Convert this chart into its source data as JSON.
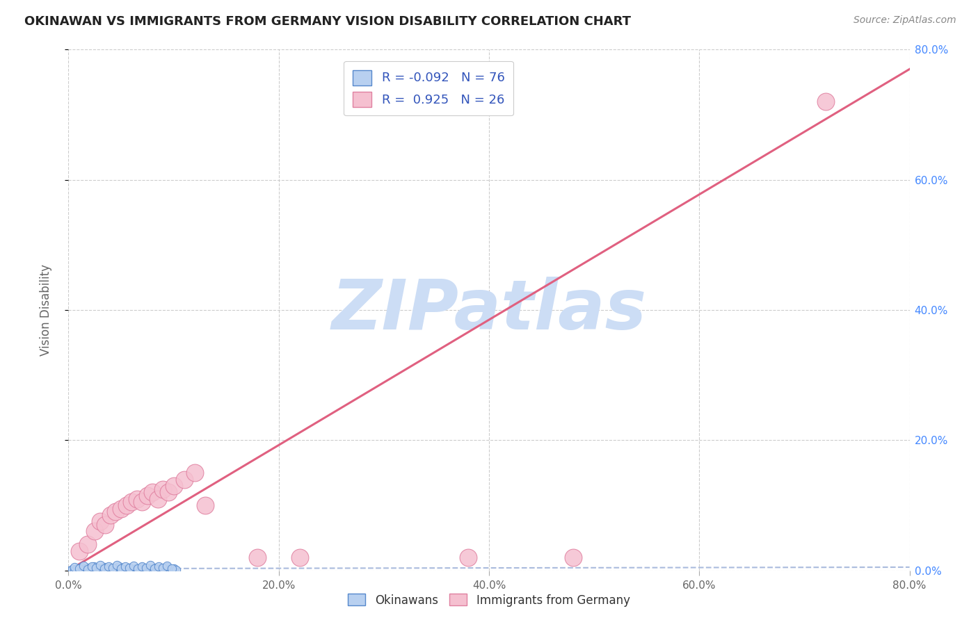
{
  "title": "OKINAWAN VS IMMIGRANTS FROM GERMANY VISION DISABILITY CORRELATION CHART",
  "source": "Source: ZipAtlas.com",
  "ylabel": "Vision Disability",
  "xlim": [
    0.0,
    0.8
  ],
  "ylim": [
    0.0,
    0.8
  ],
  "xtick_vals": [
    0.0,
    0.2,
    0.4,
    0.6,
    0.8
  ],
  "xtick_labels": [
    "0.0%",
    "20.0%",
    "40.0%",
    "60.0%",
    "80.0%"
  ],
  "ytick_vals": [
    0.0,
    0.2,
    0.4,
    0.6,
    0.8
  ],
  "ytick_labels_right": [
    "0.0%",
    "20.0%",
    "40.0%",
    "60.0%",
    "80.0%"
  ],
  "okinawan_color": "#b8d0f0",
  "okinawan_edge_color": "#5588cc",
  "germany_color": "#f5c0d0",
  "germany_edge_color": "#e080a0",
  "okinawan_R": -0.092,
  "okinawan_N": 76,
  "germany_R": 0.925,
  "germany_N": 26,
  "okinawan_trendline_color": "#aabbdd",
  "germany_trendline_color": "#e06080",
  "watermark_color": "#ccddf5",
  "background_color": "#ffffff",
  "grid_color": "#cccccc",
  "legend_text_color": "#3355bb",
  "title_color": "#222222",
  "right_axis_color": "#4488ff",
  "germany_trendline_x": [
    0.0,
    0.8
  ],
  "germany_trendline_y": [
    0.0,
    0.77
  ],
  "okinawan_points": [
    [
      0.0,
      0.0
    ],
    [
      0.002,
      0.0
    ],
    [
      0.004,
      0.002
    ],
    [
      0.006,
      0.0
    ],
    [
      0.008,
      0.003
    ],
    [
      0.01,
      0.0
    ],
    [
      0.012,
      0.005
    ],
    [
      0.014,
      0.001
    ],
    [
      0.016,
      0.0
    ],
    [
      0.018,
      0.004
    ],
    [
      0.02,
      0.0
    ],
    [
      0.022,
      0.002
    ],
    [
      0.024,
      0.006
    ],
    [
      0.026,
      0.0
    ],
    [
      0.028,
      0.003
    ],
    [
      0.03,
      0.001
    ],
    [
      0.032,
      0.0
    ],
    [
      0.034,
      0.005
    ],
    [
      0.036,
      0.002
    ],
    [
      0.038,
      0.0
    ],
    [
      0.04,
      0.004
    ],
    [
      0.042,
      0.001
    ],
    [
      0.044,
      0.0
    ],
    [
      0.046,
      0.003
    ],
    [
      0.048,
      0.006
    ],
    [
      0.05,
      0.0
    ],
    [
      0.052,
      0.002
    ],
    [
      0.054,
      0.001
    ],
    [
      0.056,
      0.0
    ],
    [
      0.058,
      0.004
    ],
    [
      0.06,
      0.002
    ],
    [
      0.062,
      0.0
    ],
    [
      0.064,
      0.003
    ],
    [
      0.066,
      0.001
    ],
    [
      0.068,
      0.0
    ],
    [
      0.07,
      0.005
    ],
    [
      0.072,
      0.002
    ],
    [
      0.074,
      0.0
    ],
    [
      0.076,
      0.003
    ],
    [
      0.078,
      0.001
    ],
    [
      0.08,
      0.0
    ],
    [
      0.082,
      0.004
    ],
    [
      0.084,
      0.002
    ],
    [
      0.086,
      0.0
    ],
    [
      0.088,
      0.003
    ],
    [
      0.09,
      0.001
    ],
    [
      0.092,
      0.0
    ],
    [
      0.094,
      0.005
    ],
    [
      0.096,
      0.002
    ],
    [
      0.098,
      0.0
    ],
    [
      0.1,
      0.003
    ],
    [
      0.102,
      0.001
    ],
    [
      0.006,
      0.005
    ],
    [
      0.01,
      0.003
    ],
    [
      0.014,
      0.007
    ],
    [
      0.018,
      0.002
    ],
    [
      0.022,
      0.006
    ],
    [
      0.026,
      0.004
    ],
    [
      0.03,
      0.008
    ],
    [
      0.034,
      0.003
    ],
    [
      0.038,
      0.006
    ],
    [
      0.042,
      0.004
    ],
    [
      0.046,
      0.008
    ],
    [
      0.05,
      0.003
    ],
    [
      0.054,
      0.006
    ],
    [
      0.058,
      0.004
    ],
    [
      0.062,
      0.007
    ],
    [
      0.066,
      0.003
    ],
    [
      0.07,
      0.006
    ],
    [
      0.074,
      0.004
    ],
    [
      0.078,
      0.008
    ],
    [
      0.082,
      0.003
    ],
    [
      0.086,
      0.006
    ],
    [
      0.09,
      0.004
    ],
    [
      0.094,
      0.007
    ],
    [
      0.098,
      0.003
    ]
  ],
  "germany_points": [
    [
      0.01,
      0.03
    ],
    [
      0.018,
      0.04
    ],
    [
      0.025,
      0.06
    ],
    [
      0.03,
      0.075
    ],
    [
      0.035,
      0.07
    ],
    [
      0.04,
      0.085
    ],
    [
      0.045,
      0.09
    ],
    [
      0.05,
      0.095
    ],
    [
      0.055,
      0.1
    ],
    [
      0.06,
      0.105
    ],
    [
      0.065,
      0.11
    ],
    [
      0.07,
      0.105
    ],
    [
      0.075,
      0.115
    ],
    [
      0.08,
      0.12
    ],
    [
      0.085,
      0.11
    ],
    [
      0.09,
      0.125
    ],
    [
      0.095,
      0.12
    ],
    [
      0.1,
      0.13
    ],
    [
      0.11,
      0.14
    ],
    [
      0.12,
      0.15
    ],
    [
      0.13,
      0.1
    ],
    [
      0.18,
      0.02
    ],
    [
      0.22,
      0.02
    ],
    [
      0.38,
      0.02
    ],
    [
      0.48,
      0.02
    ],
    [
      0.72,
      0.72
    ]
  ]
}
